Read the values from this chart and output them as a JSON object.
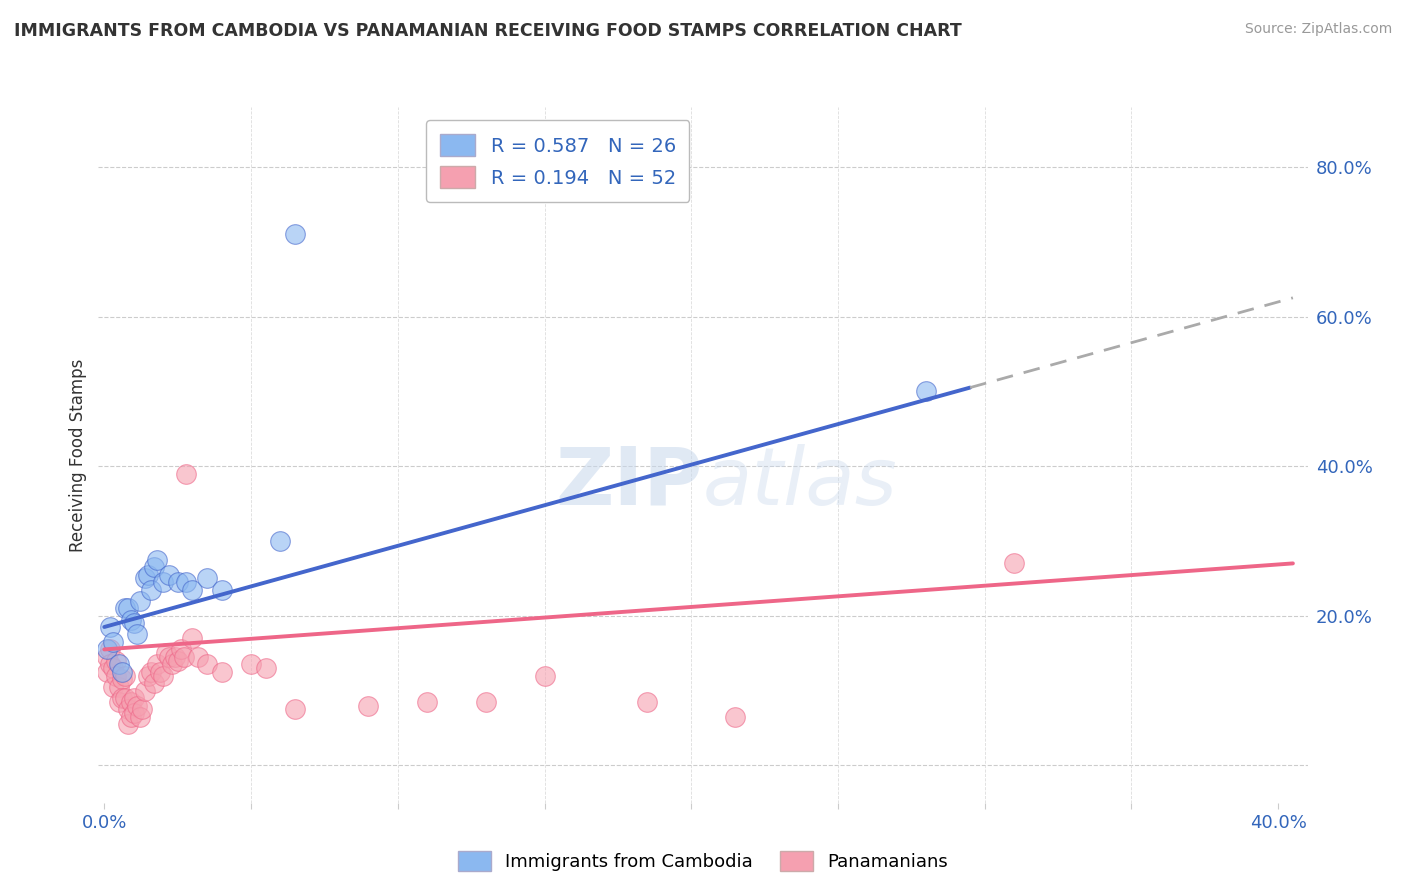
{
  "title": "IMMIGRANTS FROM CAMBODIA VS PANAMANIAN RECEIVING FOOD STAMPS CORRELATION CHART",
  "source": "Source: ZipAtlas.com",
  "ylabel": "Receiving Food Stamps",
  "legend_entry1": "R = 0.587   N = 26",
  "legend_entry2": "R = 0.194   N = 52",
  "legend_label1": "Immigrants from Cambodia",
  "legend_label2": "Panamanians",
  "right_yticks": [
    0.0,
    0.2,
    0.4,
    0.6,
    0.8
  ],
  "right_yticklabels": [
    "",
    "20.0%",
    "40.0%",
    "60.0%",
    "80.0%"
  ],
  "xlim": [
    -0.002,
    0.41
  ],
  "ylim": [
    -0.05,
    0.88
  ],
  "blue_color": "#8BB8F0",
  "pink_color": "#F5A0B0",
  "trend_blue": "#4466CC",
  "trend_pink": "#EE6688",
  "trend_dash_color": "#AAAAAA",
  "background": "#FFFFFF",
  "watermark": "ZIPatlas",
  "blue_scatter": [
    [
      0.001,
      0.155
    ],
    [
      0.002,
      0.185
    ],
    [
      0.003,
      0.165
    ],
    [
      0.005,
      0.135
    ],
    [
      0.006,
      0.125
    ],
    [
      0.007,
      0.21
    ],
    [
      0.008,
      0.21
    ],
    [
      0.009,
      0.195
    ],
    [
      0.01,
      0.19
    ],
    [
      0.011,
      0.175
    ],
    [
      0.012,
      0.22
    ],
    [
      0.014,
      0.25
    ],
    [
      0.015,
      0.255
    ],
    [
      0.016,
      0.235
    ],
    [
      0.017,
      0.265
    ],
    [
      0.018,
      0.275
    ],
    [
      0.02,
      0.245
    ],
    [
      0.022,
      0.255
    ],
    [
      0.025,
      0.245
    ],
    [
      0.028,
      0.245
    ],
    [
      0.03,
      0.235
    ],
    [
      0.035,
      0.25
    ],
    [
      0.04,
      0.235
    ],
    [
      0.06,
      0.3
    ],
    [
      0.065,
      0.71
    ],
    [
      0.28,
      0.5
    ]
  ],
  "pink_scatter": [
    [
      0.001,
      0.145
    ],
    [
      0.001,
      0.125
    ],
    [
      0.002,
      0.155
    ],
    [
      0.002,
      0.135
    ],
    [
      0.003,
      0.13
    ],
    [
      0.003,
      0.105
    ],
    [
      0.004,
      0.14
    ],
    [
      0.004,
      0.12
    ],
    [
      0.005,
      0.105
    ],
    [
      0.005,
      0.085
    ],
    [
      0.006,
      0.115
    ],
    [
      0.006,
      0.09
    ],
    [
      0.007,
      0.12
    ],
    [
      0.007,
      0.09
    ],
    [
      0.008,
      0.075
    ],
    [
      0.008,
      0.055
    ],
    [
      0.009,
      0.085
    ],
    [
      0.009,
      0.065
    ],
    [
      0.01,
      0.09
    ],
    [
      0.01,
      0.07
    ],
    [
      0.011,
      0.08
    ],
    [
      0.012,
      0.065
    ],
    [
      0.013,
      0.075
    ],
    [
      0.014,
      0.1
    ],
    [
      0.015,
      0.12
    ],
    [
      0.016,
      0.125
    ],
    [
      0.017,
      0.11
    ],
    [
      0.018,
      0.135
    ],
    [
      0.019,
      0.125
    ],
    [
      0.02,
      0.12
    ],
    [
      0.021,
      0.15
    ],
    [
      0.022,
      0.145
    ],
    [
      0.023,
      0.135
    ],
    [
      0.024,
      0.145
    ],
    [
      0.025,
      0.14
    ],
    [
      0.026,
      0.155
    ],
    [
      0.027,
      0.145
    ],
    [
      0.028,
      0.39
    ],
    [
      0.03,
      0.17
    ],
    [
      0.032,
      0.145
    ],
    [
      0.035,
      0.135
    ],
    [
      0.04,
      0.125
    ],
    [
      0.05,
      0.135
    ],
    [
      0.055,
      0.13
    ],
    [
      0.065,
      0.075
    ],
    [
      0.09,
      0.08
    ],
    [
      0.11,
      0.085
    ],
    [
      0.13,
      0.085
    ],
    [
      0.15,
      0.12
    ],
    [
      0.185,
      0.085
    ],
    [
      0.215,
      0.065
    ],
    [
      0.31,
      0.27
    ]
  ],
  "blue_trendline": [
    [
      0.0,
      0.185
    ],
    [
      0.295,
      0.505
    ]
  ],
  "blue_dashline": [
    [
      0.295,
      0.505
    ],
    [
      0.405,
      0.625
    ]
  ],
  "pink_trendline": [
    [
      0.0,
      0.155
    ],
    [
      0.405,
      0.27
    ]
  ]
}
